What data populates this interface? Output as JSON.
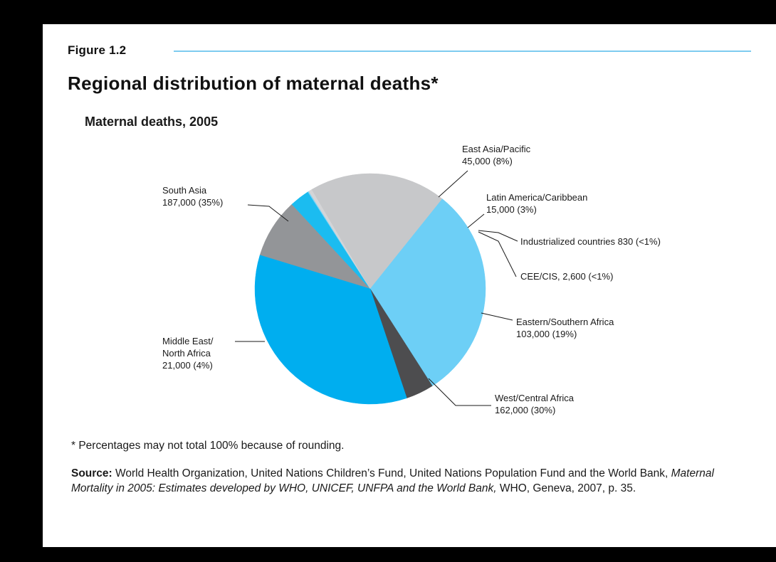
{
  "figure_label": "Figure 1.2",
  "title": "Regional distribution of maternal deaths*",
  "chart_data": {
    "type": "pie",
    "subtitle": "Maternal deaths, 2005",
    "slices": [
      {
        "name": "East Asia/Pacific",
        "value": 45000,
        "value_label": "45,000 (8%)",
        "color": "#939598"
      },
      {
        "name": "Latin America/Caribbean",
        "value": 15000,
        "value_label": "15,000 (3%)",
        "color": "#1bbcf0"
      },
      {
        "name": "Industrialized countries 830 (<1%)",
        "value": 830,
        "value_label": "",
        "color": "#7fd3f5"
      },
      {
        "name": "CEE/CIS, 2,600 (<1%)",
        "value": 2600,
        "value_label": "",
        "color": "#d4d5d7"
      },
      {
        "name": "Eastern/Southern Africa",
        "value": 103000,
        "value_label": "103,000 (19%)",
        "color": "#c7c8ca"
      },
      {
        "name": "West/Central Africa",
        "value": 162000,
        "value_label": "162,000 (30%)",
        "color": "#6dcff6"
      },
      {
        "name": "Middle East/ North Africa",
        "value": 21000,
        "value_label": "21,000 (4%)",
        "color": "#4d4d4f"
      },
      {
        "name": "South Asia",
        "value": 187000,
        "value_label": "187,000 (35%)",
        "color": "#00aeef"
      }
    ]
  },
  "footnote": "* Percentages may not total 100% because of rounding.",
  "source": {
    "label": "Source:",
    "text1": "World Health Organization, United Nations Children’s Fund, United Nations Population Fund and the World Bank,",
    "italic": "Maternal Mortality in 2005: Estimates developed by WHO, UNICEF, UNFPA and the World Bank,",
    "text2": "WHO, Geneva, 2007, p. 35."
  }
}
